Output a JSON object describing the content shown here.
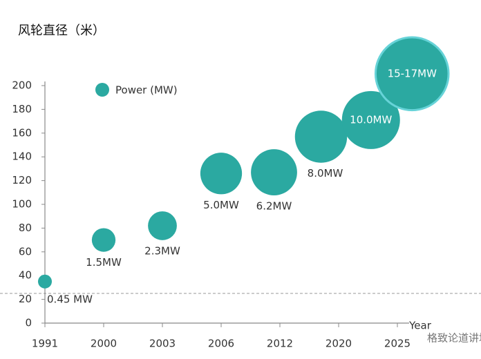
{
  "chart_data": {
    "type": "bubble",
    "title": "风轮直径（米）",
    "x_label": "Year",
    "legend_label": "Power (MW)",
    "legend": "top-left",
    "color": "#2ba9a1",
    "highlight_color": "#67d3d8",
    "xlim": [
      0,
      6
    ],
    "xticks": [
      {
        "value": 0,
        "label": "1991"
      },
      {
        "value": 1,
        "label": "2000"
      },
      {
        "value": 2,
        "label": "2003"
      },
      {
        "value": 3,
        "label": "2006"
      },
      {
        "value": 4,
        "label": "2012"
      },
      {
        "value": 5,
        "label": "2020"
      },
      {
        "value": 6,
        "label": "2025"
      }
    ],
    "ylim": [
      0,
      200
    ],
    "yticks": [
      0,
      20,
      40,
      60,
      80,
      100,
      120,
      140,
      160,
      180,
      200
    ],
    "x": [
      0,
      1,
      2,
      3.0,
      3.9,
      4.7,
      5.55,
      6.25
    ],
    "values": [
      35,
      70,
      82,
      126,
      127,
      157,
      171,
      210
    ],
    "sizes": [
      0.45,
      1.5,
      2.3,
      5.0,
      6.2,
      8.0,
      10.0,
      16
    ],
    "value_labels": [
      "0.45 MW",
      "1.5MW",
      "2.3MW",
      "5.0MW",
      "6.2MW",
      "8.0MW",
      "10.0MW",
      "15-17MW"
    ],
    "watermark": "格致论道讲坛"
  }
}
